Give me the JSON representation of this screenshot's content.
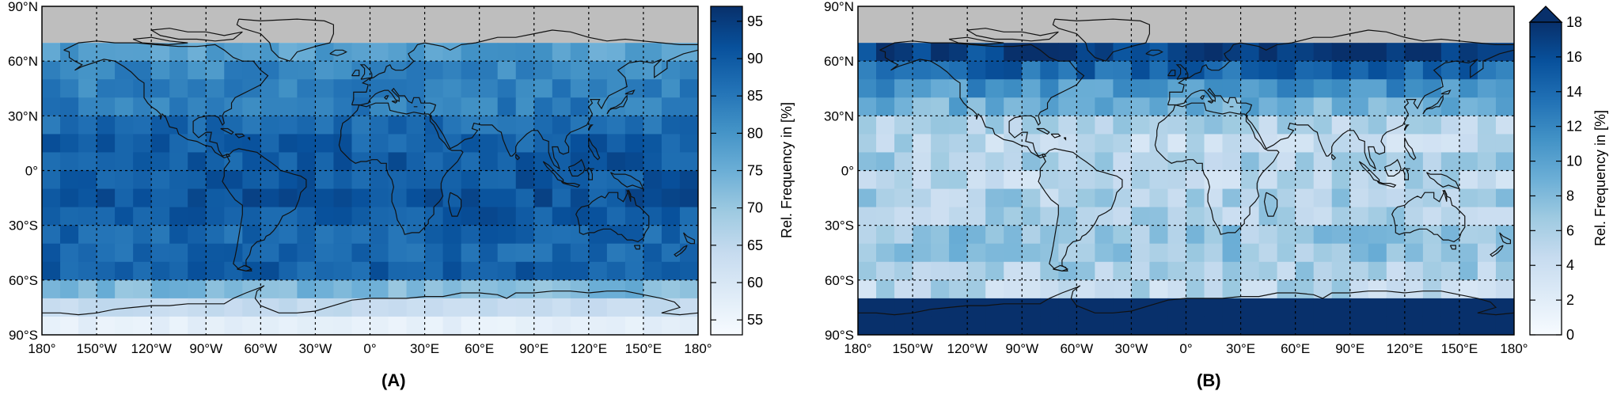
{
  "chart_data": [
    {
      "type": "heatmap",
      "panel_label": "(A)",
      "colorbar": {
        "label": "Rel. Frequency in [%]",
        "range": [
          53,
          97
        ],
        "ticks": [
          "55",
          "60",
          "65",
          "70",
          "75",
          "80",
          "85",
          "90",
          "95"
        ],
        "extend_max": false
      },
      "lat_ticks": [
        "90°N",
        "60°N",
        "30°N",
        "0°",
        "30°S",
        "60°S",
        "90°S"
      ],
      "lon_ticks": [
        "180°",
        "150°W",
        "120°W",
        "90°W",
        "60°W",
        "30°W",
        "0°",
        "30°E",
        "60°E",
        "90°E",
        "120°E",
        "150°E",
        "180°"
      ],
      "grid": true,
      "grid_resolution_deg": 10,
      "no_data_above_lat": 70,
      "zonal_profile": {
        "lat_bands": [
          "70N-60N",
          "60N-50N",
          "50N-40N",
          "40N-30N",
          "30N-20N",
          "20N-10N",
          "10N-0",
          "0-10S",
          "10S-20S",
          "20S-30S",
          "30S-40S",
          "40S-50S",
          "50S-60S",
          "60S-70S",
          "70S-80S",
          "80S-90S"
        ],
        "values": [
          78,
          82,
          83,
          84,
          87,
          89,
          90,
          90,
          91,
          90,
          88,
          88,
          89,
          73,
          64,
          57
        ]
      }
    },
    {
      "type": "heatmap",
      "panel_label": "(B)",
      "colorbar": {
        "label": "Rel. Frequency in [%]",
        "range": [
          0,
          18
        ],
        "ticks": [
          "0",
          "2",
          "4",
          "6",
          "8",
          "10",
          "12",
          "14",
          "16",
          "18"
        ],
        "extend_max": true
      },
      "lat_ticks": [
        "90°N",
        "60°N",
        "30°N",
        "0°",
        "30°S",
        "60°S",
        "90°S"
      ],
      "lon_ticks": [
        "180°",
        "150°W",
        "120°W",
        "90°W",
        "60°W",
        "30°W",
        "0°",
        "30°E",
        "60°E",
        "90°E",
        "120°E",
        "150°E",
        "180°"
      ],
      "grid": true,
      "grid_resolution_deg": 10,
      "no_data_above_lat": 70,
      "zonal_profile": {
        "lat_bands": [
          "70N-60N",
          "60N-50N",
          "50N-40N",
          "40N-30N",
          "30N-20N",
          "20N-10N",
          "10N-0",
          "0-10S",
          "10S-20S",
          "20S-30S",
          "30S-40S",
          "40S-50S",
          "50S-60S",
          "60S-70S",
          "70S-80S",
          "80S-90S"
        ],
        "values": [
          17,
          14,
          11,
          9,
          6,
          5,
          6,
          5,
          6,
          6,
          7,
          7,
          6,
          5,
          18,
          18
        ]
      }
    }
  ]
}
